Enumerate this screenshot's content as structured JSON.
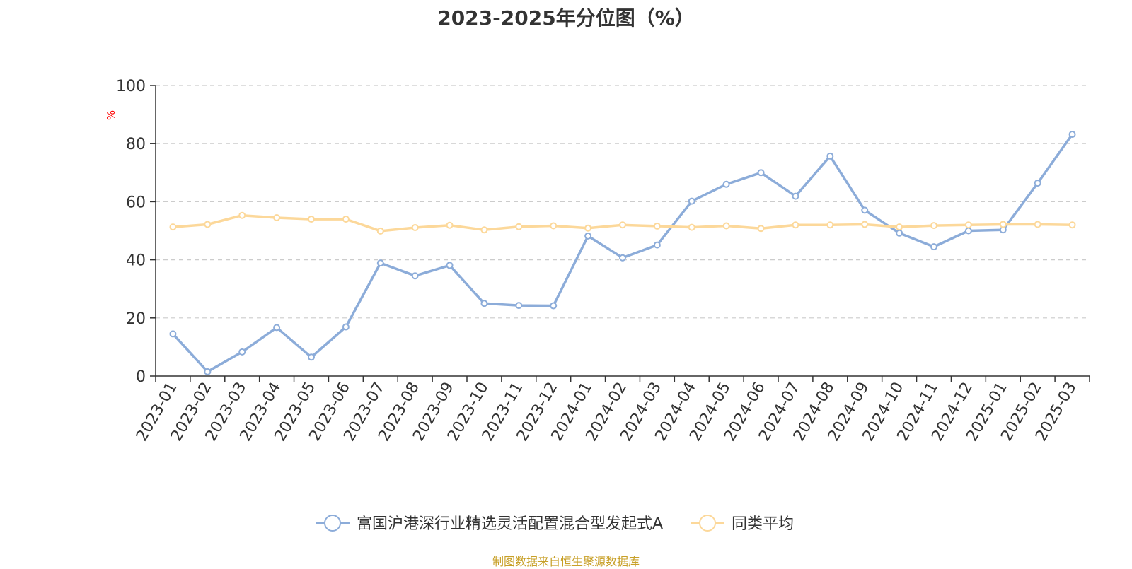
{
  "chart_data": {
    "type": "line",
    "title": "2023-2025年分位图（%）",
    "ylabel": "%",
    "ylim": [
      0,
      100
    ],
    "yticks": [
      0,
      20,
      40,
      60,
      80,
      100
    ],
    "grid": true,
    "legend_position": "bottom",
    "categories": [
      "2023-01",
      "2023-02",
      "2023-03",
      "2023-04",
      "2023-05",
      "2023-06",
      "2023-07",
      "2023-08",
      "2023-09",
      "2023-10",
      "2023-11",
      "2023-12",
      "2024-01",
      "2024-02",
      "2024-03",
      "2024-04",
      "2024-05",
      "2024-06",
      "2024-07",
      "2024-08",
      "2024-09",
      "2024-10",
      "2024-11",
      "2024-12",
      "2025-01",
      "2025-02",
      "2025-03"
    ],
    "series": [
      {
        "name": "富国沪港深行业精选灵活配置混合型发起式A",
        "color": "#8cacd9",
        "values": [
          14.5,
          1.5,
          8.3,
          16.7,
          6.5,
          16.9,
          38.9,
          34.5,
          38.1,
          25.0,
          24.3,
          24.2,
          48.2,
          40.7,
          45.1,
          60.2,
          66.0,
          70.0,
          61.9,
          75.7,
          57.1,
          49.2,
          44.5,
          50.0,
          50.3,
          66.4,
          83.2
        ]
      },
      {
        "name": "同类平均",
        "color": "#fcd89a",
        "values": [
          51.3,
          52.2,
          55.3,
          54.5,
          54.0,
          54.0,
          49.9,
          51.1,
          51.9,
          50.3,
          51.4,
          51.7,
          50.9,
          52.0,
          51.6,
          51.2,
          51.7,
          50.8,
          52.0,
          52.0,
          52.2,
          51.3,
          51.8,
          52.0,
          52.2,
          52.2,
          52.0
        ]
      }
    ]
  },
  "footer": {
    "source": "制图数据来自恒生聚源数据库"
  }
}
